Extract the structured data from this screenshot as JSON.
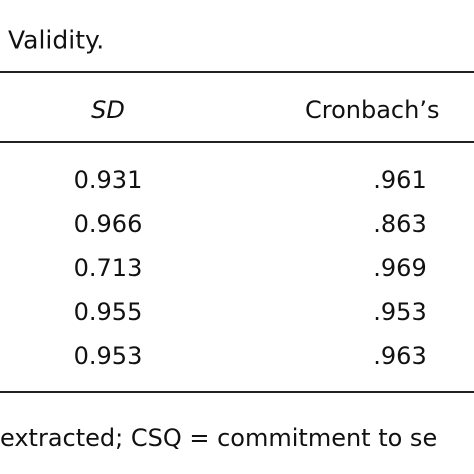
{
  "caption": "Validity.",
  "table": {
    "header": [
      "SD",
      "Cronbach’s"
    ],
    "rows": [
      [
        "0.931",
        ".961"
      ],
      [
        "0.966",
        ".863"
      ],
      [
        "0.713",
        ".969"
      ],
      [
        "0.955",
        ".953"
      ],
      [
        "0.953",
        ".963"
      ]
    ]
  },
  "footnote": "extracted; CSQ = commitment to se"
}
